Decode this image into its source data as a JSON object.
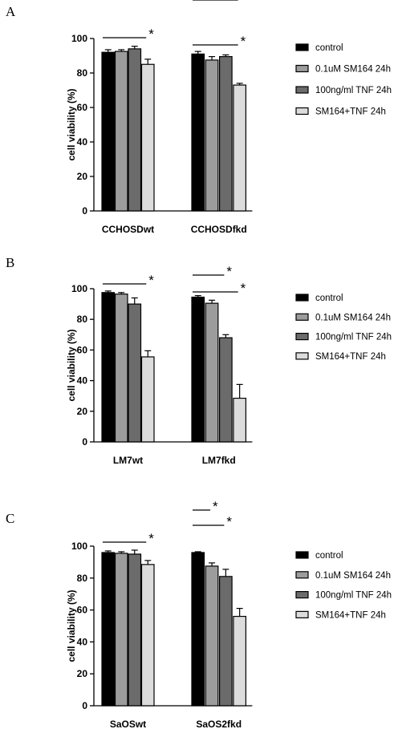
{
  "chart_data": [
    {
      "type": "bar",
      "panel_label": "A",
      "categories": [
        "CCHOSDwt",
        "CCHOSDfkd"
      ],
      "ylabel": "cell viability (%)",
      "ylim": [
        0,
        100
      ],
      "yticks": [
        0,
        20,
        40,
        60,
        80,
        100
      ],
      "series": [
        {
          "name": "control",
          "values": [
            92,
            91
          ],
          "errors": [
            1.5,
            1.5
          ]
        },
        {
          "name": "0.1uM SM164 24h",
          "values": [
            92.5,
            87.5
          ],
          "errors": [
            1,
            2
          ]
        },
        {
          "name": "100ng/ml TNF 24h",
          "values": [
            94,
            89.5
          ],
          "errors": [
            1.5,
            1
          ]
        },
        {
          "name": "SM164+TNF 24h",
          "values": [
            85,
            73
          ],
          "errors": [
            3,
            1
          ]
        }
      ],
      "significance": [
        {
          "category": 0,
          "from_series": 0,
          "to_series": 3,
          "label": "*"
        },
        {
          "category": 1,
          "from_series": 0,
          "to_series": 3,
          "label": "*"
        }
      ]
    },
    {
      "type": "bar",
      "panel_label": "B",
      "categories": [
        "LM7wt",
        "LM7fkd"
      ],
      "ylabel": "cell viability (%)",
      "ylim": [
        0,
        100
      ],
      "yticks": [
        0,
        20,
        40,
        60,
        80,
        100
      ],
      "series": [
        {
          "name": "control",
          "values": [
            97.5,
            94.5
          ],
          "errors": [
            1,
            1
          ]
        },
        {
          "name": "0.1uM SM164 24h",
          "values": [
            96.5,
            90.5
          ],
          "errors": [
            1,
            2
          ]
        },
        {
          "name": "100ng/ml TNF 24h",
          "values": [
            90,
            68
          ],
          "errors": [
            4,
            2
          ]
        },
        {
          "name": "SM164+TNF 24h",
          "values": [
            55.5,
            28.5
          ],
          "errors": [
            4,
            9
          ]
        }
      ],
      "significance": [
        {
          "category": 0,
          "from_series": 0,
          "to_series": 3,
          "label": "*"
        },
        {
          "category": 1,
          "from_series": 0,
          "to_series": 2,
          "label": "*"
        },
        {
          "category": 1,
          "from_series": 0,
          "to_series": 3,
          "label": "*"
        }
      ]
    },
    {
      "type": "bar",
      "panel_label": "C",
      "categories": [
        "SaOSwt",
        "SaOS2fkd"
      ],
      "ylabel": "cell viability (%)",
      "ylim": [
        0,
        100
      ],
      "yticks": [
        0,
        20,
        40,
        60,
        80,
        100
      ],
      "series": [
        {
          "name": "control",
          "values": [
            96,
            96
          ],
          "errors": [
            1,
            0.5
          ]
        },
        {
          "name": "0.1uM SM164 24h",
          "values": [
            95.5,
            87.5
          ],
          "errors": [
            1,
            2
          ]
        },
        {
          "name": "100ng/ml TNF 24h",
          "values": [
            95,
            81
          ],
          "errors": [
            2.5,
            4.5
          ]
        },
        {
          "name": "SM164+TNF 24h",
          "values": [
            88.5,
            56
          ],
          "errors": [
            2.5,
            5
          ]
        }
      ],
      "significance": [
        {
          "category": 0,
          "from_series": 0,
          "to_series": 3,
          "label": "*"
        },
        {
          "category": 1,
          "from_series": 0,
          "to_series": 1,
          "label": "*"
        },
        {
          "category": 1,
          "from_series": 0,
          "to_series": 2,
          "label": "*"
        },
        {
          "category": 1,
          "from_series": 0,
          "to_series": 3,
          "label": "*"
        }
      ]
    }
  ],
  "colors": {
    "control": "#000000",
    "sm164": "#9c9c9c",
    "tnf": "#6b6b6b",
    "combo": "#dcdcdc",
    "axis": "#000000"
  }
}
